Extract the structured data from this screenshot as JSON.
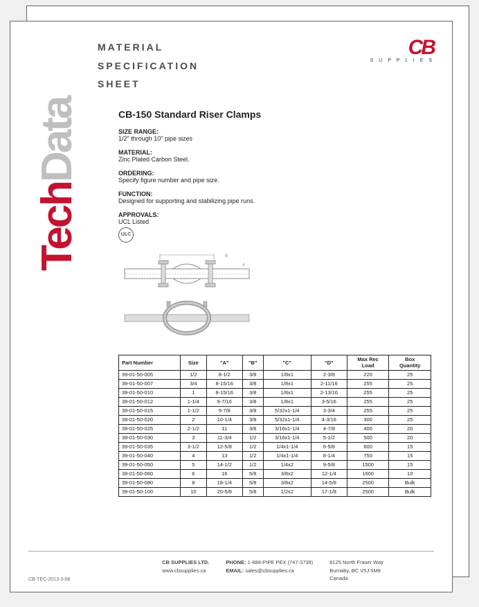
{
  "brand_side": {
    "tech": "Tech",
    "data": "Data"
  },
  "header": {
    "line1": "MATERIAL",
    "line2": "SPECIFICATION",
    "line3": "SHEET"
  },
  "logo": {
    "cb": "CB",
    "sub": "S U P P L I E S"
  },
  "product_title": "CB-150 Standard Riser Clamps",
  "specs": {
    "size_range": {
      "label": "SIZE RANGE:",
      "value": "1/2\" through 10\" pipe sizes"
    },
    "material": {
      "label": "MATERIAL:",
      "value": "Zinc Plated Carbon Steel."
    },
    "ordering": {
      "label": "ORDERING:",
      "value": "Specify figure number and pipe size."
    },
    "function": {
      "label": "FUNCTION:",
      "value": "Designed for supporting and stabilizing pipe runs."
    },
    "approvals": {
      "label": "APPROVALS:",
      "value": "UCL Listed"
    }
  },
  "ulc_text": "ULC",
  "table": {
    "columns": [
      "Part Number",
      "Size",
      "\"A\"",
      "\"B\"",
      "\"C\"",
      "\"D\"",
      "Max Rec\nLoad",
      "Box\nQuantity"
    ],
    "rows": [
      [
        "39-01-50-005",
        "1/2",
        "8-1/2",
        "3/8",
        "1/8x1",
        "2-3/8",
        "220",
        "25"
      ],
      [
        "39-01-50-007",
        "3/4",
        "8-15/16",
        "3/8",
        "1/8x1",
        "2-11/16",
        "255",
        "25"
      ],
      [
        "39-01-50-010",
        "1",
        "8-15/16",
        "3/8",
        "1/8x1",
        "2-13/16",
        "255",
        "25"
      ],
      [
        "39-01-50-012",
        "1-1/4",
        "9-7/16",
        "3/8",
        "1/8x1",
        "3-5/16",
        "255",
        "25"
      ],
      [
        "39-01-50-015",
        "1-1/2",
        "9-7/8",
        "3/8",
        "5/32x1-1/4",
        "3-3/4",
        "255",
        "25"
      ],
      [
        "39-01-50-020",
        "2",
        "10-1/4",
        "3/8",
        "5/32x1-1/4",
        "4-3/16",
        "300",
        "25"
      ],
      [
        "39-01-50-025",
        "2-1/2",
        "11",
        "3/8",
        "3/16x1-1/4",
        "4-7/8",
        "400",
        "20"
      ],
      [
        "39-01-50-030",
        "3",
        "11-3/4",
        "1/2",
        "3/16x1-1/4",
        "5-1/2",
        "500",
        "20"
      ],
      [
        "39-01-50-035",
        "3-1/2",
        "12-5/8",
        "1/2",
        "1/4x1-1/4",
        "6-5/8",
        "600",
        "15"
      ],
      [
        "39-01-50-040",
        "4",
        "13",
        "1/2",
        "1/4x1-1/4",
        "8-1/4",
        "750",
        "15"
      ],
      [
        "39-01-50-050",
        "5",
        "14-1/2",
        "1/2",
        "1/4x2",
        "9-5/8",
        "1500",
        "15"
      ],
      [
        "39-01-50-060",
        "6",
        "16",
        "5/8",
        "3/8x2",
        "12-1/4",
        "1600",
        "10"
      ],
      [
        "39-01-50-080",
        "8",
        "18-1/4",
        "5/8",
        "3/8x2",
        "14-5/8",
        "2500",
        "Bulk"
      ],
      [
        "39-01-50-100",
        "10",
        "20-5/8",
        "5/8",
        "1/2x2",
        "17-1/8",
        "2500",
        "Bulk"
      ]
    ]
  },
  "footer": {
    "company": "CB SUPPLIES LTD.",
    "website": "www.cbsupplies.ca",
    "phone_label": "PHONE:",
    "phone": "1-888-PIPE PEX (747-3739)",
    "email_label": "EMAIL:",
    "email": "sales@cbsupplies.ca",
    "addr1": "8125 North Fraser Way",
    "addr2": "Burnaby, BC  V5J 5M8",
    "addr3": "Canada"
  },
  "doc_code": "CB-TEC-2013-3-08",
  "colors": {
    "brand_red": "#c41230",
    "brand_grey": "#bfbfbf",
    "text": "#222222",
    "border": "#666666"
  }
}
